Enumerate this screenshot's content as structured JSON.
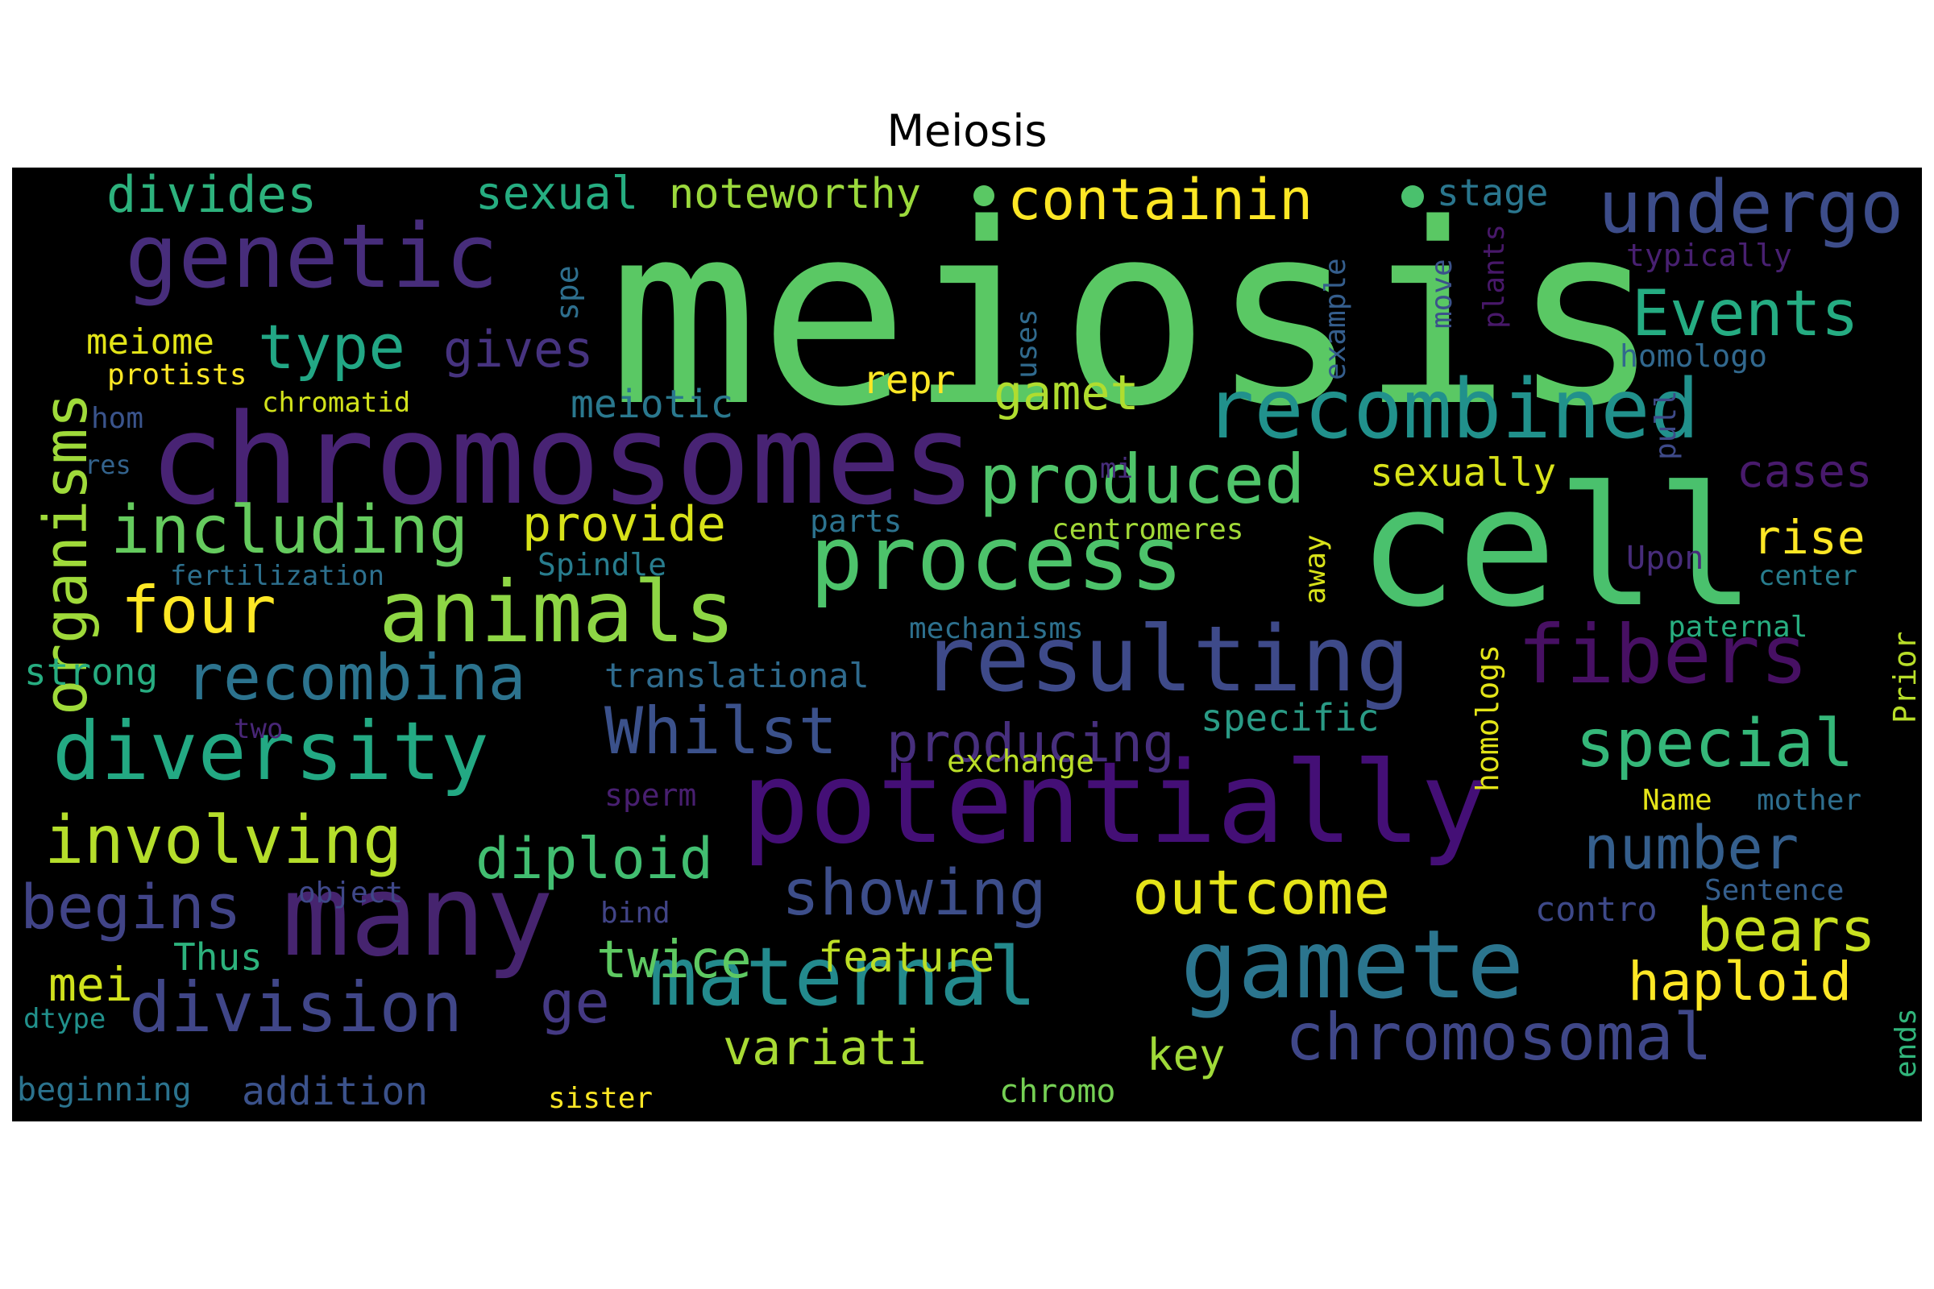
{
  "title": "Meiosis",
  "colors": {
    "background": "#000000",
    "palette_name": "viridis"
  },
  "words": [
    {
      "text": "meiosis",
      "color": "#5ac864"
    },
    {
      "text": "cell",
      "color": "#4ac16d"
    },
    {
      "text": "chromosomes",
      "color": "#482374"
    },
    {
      "text": "potentially",
      "color": "#440f76"
    },
    {
      "text": "many",
      "color": "#46246f"
    },
    {
      "text": "gamete",
      "color": "#2b758e"
    },
    {
      "text": "resulting",
      "color": "#3e4a89"
    },
    {
      "text": "genetic",
      "color": "#472d7b"
    },
    {
      "text": "process",
      "color": "#4dc36b"
    },
    {
      "text": "animals",
      "color": "#8ed645"
    },
    {
      "text": "recombined",
      "color": "#21918c"
    },
    {
      "text": "diversity",
      "color": "#23a983"
    },
    {
      "text": "maternal",
      "color": "#238a8d"
    },
    {
      "text": "fibers",
      "color": "#471063"
    },
    {
      "text": "undergo",
      "color": "#3d4d8a"
    },
    {
      "text": "organisms",
      "color": "#9fda3a"
    },
    {
      "text": "produced",
      "color": "#4fc46a"
    },
    {
      "text": "including",
      "color": "#65cb5e"
    },
    {
      "text": "involving",
      "color": "#b5de2b"
    },
    {
      "text": "division",
      "color": "#404688"
    },
    {
      "text": "chromosomal",
      "color": "#3f4788"
    },
    {
      "text": "recombina",
      "color": "#2c738e"
    },
    {
      "text": "Whilst",
      "color": "#3b518b"
    },
    {
      "text": "showing",
      "color": "#3d4e8a"
    },
    {
      "text": "special",
      "color": "#35b779"
    },
    {
      "text": "containin",
      "color": "#fde725"
    },
    {
      "text": "Events",
      "color": "#25ac82"
    },
    {
      "text": "begins",
      "color": "#414487"
    },
    {
      "text": "four",
      "color": "#fde725"
    },
    {
      "text": "outcome",
      "color": "#e5e419"
    },
    {
      "text": "type",
      "color": "#22a785"
    },
    {
      "text": "number",
      "color": "#355f8d"
    },
    {
      "text": "bears",
      "color": "#c8e020"
    },
    {
      "text": "diploid",
      "color": "#42be71"
    },
    {
      "text": "producing",
      "color": "#472f7d"
    },
    {
      "text": "twice",
      "color": "#5ec962"
    },
    {
      "text": "variati",
      "color": "#a8db34"
    },
    {
      "text": "haploid",
      "color": "#fde725"
    },
    {
      "text": "divides",
      "color": "#2db27d"
    },
    {
      "text": "provide",
      "color": "#d8e219"
    },
    {
      "text": "gamet",
      "color": "#b0dd2f"
    },
    {
      "text": "ge",
      "color": "#443983"
    },
    {
      "text": "gives",
      "color": "#46337f"
    },
    {
      "text": "feature",
      "color": "#bddf26"
    },
    {
      "text": "sexual",
      "color": "#26ad81"
    },
    {
      "text": "noteworthy",
      "color": "#9bd93c"
    },
    {
      "text": "mei",
      "color": "#d0e11c"
    },
    {
      "text": "rise",
      "color": "#fde725"
    },
    {
      "text": "cases",
      "color": "#481a6c"
    },
    {
      "text": "meiome",
      "color": "#e2e418"
    },
    {
      "text": "meiotic",
      "color": "#2a788e"
    },
    {
      "text": "sexually",
      "color": "#d8e219"
    },
    {
      "text": "repr",
      "color": "#fde725"
    },
    {
      "text": "strong",
      "color": "#27ad81"
    },
    {
      "text": "Thus",
      "color": "#2db27d"
    },
    {
      "text": "specific",
      "color": "#2a9b86"
    },
    {
      "text": "translational",
      "color": "#2f6b8e"
    },
    {
      "text": "key",
      "color": "#a0da39"
    },
    {
      "text": "addition",
      "color": "#3b528b"
    },
    {
      "text": "beginning",
      "color": "#2b738e"
    },
    {
      "text": "chromo",
      "color": "#75d054"
    },
    {
      "text": "stage",
      "color": "#2a768e"
    },
    {
      "text": "spe",
      "color": "#2e6f8e"
    },
    {
      "text": "typically",
      "color": "#482071"
    },
    {
      "text": "homologo",
      "color": "#31688e"
    },
    {
      "text": "protists",
      "color": "#fde725"
    },
    {
      "text": "chromatid",
      "color": "#d2e21b"
    },
    {
      "text": "hom",
      "color": "#3a548c"
    },
    {
      "text": "res",
      "color": "#33638d"
    },
    {
      "text": "fertilization",
      "color": "#2d708e"
    },
    {
      "text": "Spindle",
      "color": "#287d8e"
    },
    {
      "text": "parts",
      "color": "#2c728e"
    },
    {
      "text": "centromeres",
      "color": "#a2da37"
    },
    {
      "text": "mechanisms",
      "color": "#2d708e"
    },
    {
      "text": "paternal",
      "color": "#28ae80"
    },
    {
      "text": "exchange",
      "color": "#bade28"
    },
    {
      "text": "Name",
      "color": "#e5e419"
    },
    {
      "text": "mother",
      "color": "#2e6e8e"
    },
    {
      "text": "Sentence",
      "color": "#355f8d"
    },
    {
      "text": "contro",
      "color": "#3e4989"
    },
    {
      "text": "object",
      "color": "#3f4889"
    },
    {
      "text": "bind",
      "color": "#414487"
    },
    {
      "text": "sperm",
      "color": "#481f70"
    },
    {
      "text": "two",
      "color": "#482677"
    },
    {
      "text": "dtype",
      "color": "#21918c"
    },
    {
      "text": "sister",
      "color": "#fde725"
    },
    {
      "text": "center",
      "color": "#287d8e"
    },
    {
      "text": "Upon",
      "color": "#472c7a"
    },
    {
      "text": "mi",
      "color": "#472d7b"
    },
    {
      "text": "uses",
      "color": "#306a8e"
    },
    {
      "text": "example",
      "color": "#355e8d"
    },
    {
      "text": "move",
      "color": "#3b528b"
    },
    {
      "text": "plants",
      "color": "#48186a"
    },
    {
      "text": "pull",
      "color": "#3e4a89"
    },
    {
      "text": "Prior",
      "color": "#b8de29"
    },
    {
      "text": "away",
      "color": "#d8e219"
    },
    {
      "text": "homologs",
      "color": "#e3e418"
    },
    {
      "text": "ends",
      "color": "#31b57b"
    }
  ]
}
